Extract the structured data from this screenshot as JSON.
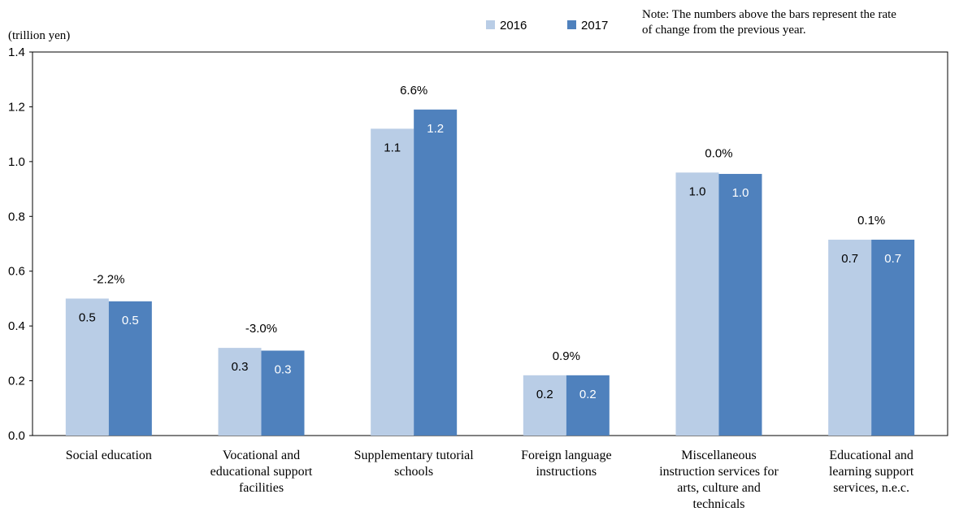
{
  "chart_data": {
    "type": "bar",
    "ylabel": "(trillion yen)",
    "ylim": [
      0,
      1.4
    ],
    "yticks": [
      "0.0",
      "0.2",
      "0.4",
      "0.6",
      "0.8",
      "1.0",
      "1.2",
      "1.4"
    ],
    "categories": [
      [
        "Social education"
      ],
      [
        "Vocational and",
        "educational support",
        "facilities"
      ],
      [
        "Supplementary tutorial",
        "schools"
      ],
      [
        "Foreign language",
        "instructions"
      ],
      [
        "Miscellaneous",
        "instruction services for",
        "arts, culture and",
        "technicals"
      ],
      [
        "Educational and",
        "learning support",
        "services, n.e.c."
      ]
    ],
    "series": [
      {
        "name": "2016",
        "color": "#b9cde6",
        "label_color": "#000000",
        "values": [
          0.5,
          0.32,
          1.12,
          0.22,
          0.96,
          0.715
        ],
        "labels": [
          "0.5",
          "0.3",
          "1.1",
          "0.2",
          "1.0",
          "0.7"
        ]
      },
      {
        "name": "2017",
        "color": "#4f81bd",
        "label_color": "#ffffff",
        "values": [
          0.49,
          0.31,
          1.19,
          0.22,
          0.955,
          0.715
        ],
        "labels": [
          "0.5",
          "0.3",
          "1.2",
          "0.2",
          "1.0",
          "0.7"
        ]
      }
    ],
    "change_labels": [
      "-2.2%",
      "-3.0%",
      "6.6%",
      "0.9%",
      "0.0%",
      "0.1%"
    ],
    "note": [
      "Note: The numbers above the bars represent the rate",
      "of change from the previous year."
    ],
    "legend_position": "top-right",
    "grid": false
  }
}
